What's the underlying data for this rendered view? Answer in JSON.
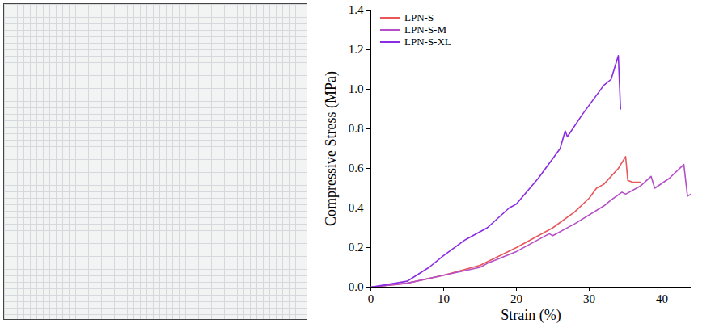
{
  "chart_data": {
    "type": "line",
    "x_label": "Strain (%)",
    "y_label": "Compressive Stress (MPa)",
    "xlim": [
      0,
      44
    ],
    "xticks": [
      0,
      10,
      20,
      30,
      40
    ],
    "ylim": [
      0,
      1.4
    ],
    "yticks": [
      {
        "value": 0,
        "label": "0.0"
      },
      0.2,
      0.4,
      0.6,
      0.8,
      {
        "value": 1,
        "label": "1.0"
      },
      1.2,
      1.4
    ],
    "legend": "top-left",
    "grid": false,
    "series": [
      {
        "name": "LPN-S",
        "color": "#e8575a",
        "x": [
          0,
          5,
          10,
          15,
          20,
          25,
          28,
          30,
          31,
          32,
          34,
          35,
          35.3,
          36,
          37
        ],
        "values": [
          0,
          0.02,
          0.06,
          0.11,
          0.2,
          0.3,
          0.38,
          0.45,
          0.5,
          0.52,
          0.6,
          0.66,
          0.54,
          0.53,
          0.53
        ]
      },
      {
        "name": "LPN-S-M",
        "color": "#b44fc8",
        "x": [
          0,
          5,
          10,
          15,
          16,
          20,
          24.5,
          25,
          28,
          32,
          33,
          34.5,
          35,
          37,
          38.5,
          39,
          41,
          43,
          43.5,
          44
        ],
        "values": [
          0,
          0.02,
          0.06,
          0.1,
          0.12,
          0.18,
          0.27,
          0.26,
          0.32,
          0.41,
          0.44,
          0.48,
          0.47,
          0.51,
          0.56,
          0.5,
          0.55,
          0.62,
          0.46,
          0.47
        ]
      },
      {
        "name": "LPN-S-XL",
        "color": "#8b2be2",
        "x": [
          0,
          5,
          8,
          10,
          13,
          16,
          19,
          20,
          23,
          26,
          26.7,
          27,
          29,
          31,
          32,
          33,
          34,
          34.3
        ],
        "values": [
          0,
          0.03,
          0.1,
          0.16,
          0.24,
          0.3,
          0.4,
          0.42,
          0.55,
          0.7,
          0.79,
          0.76,
          0.87,
          0.97,
          1.02,
          1.05,
          1.17,
          0.9
        ]
      }
    ]
  }
}
